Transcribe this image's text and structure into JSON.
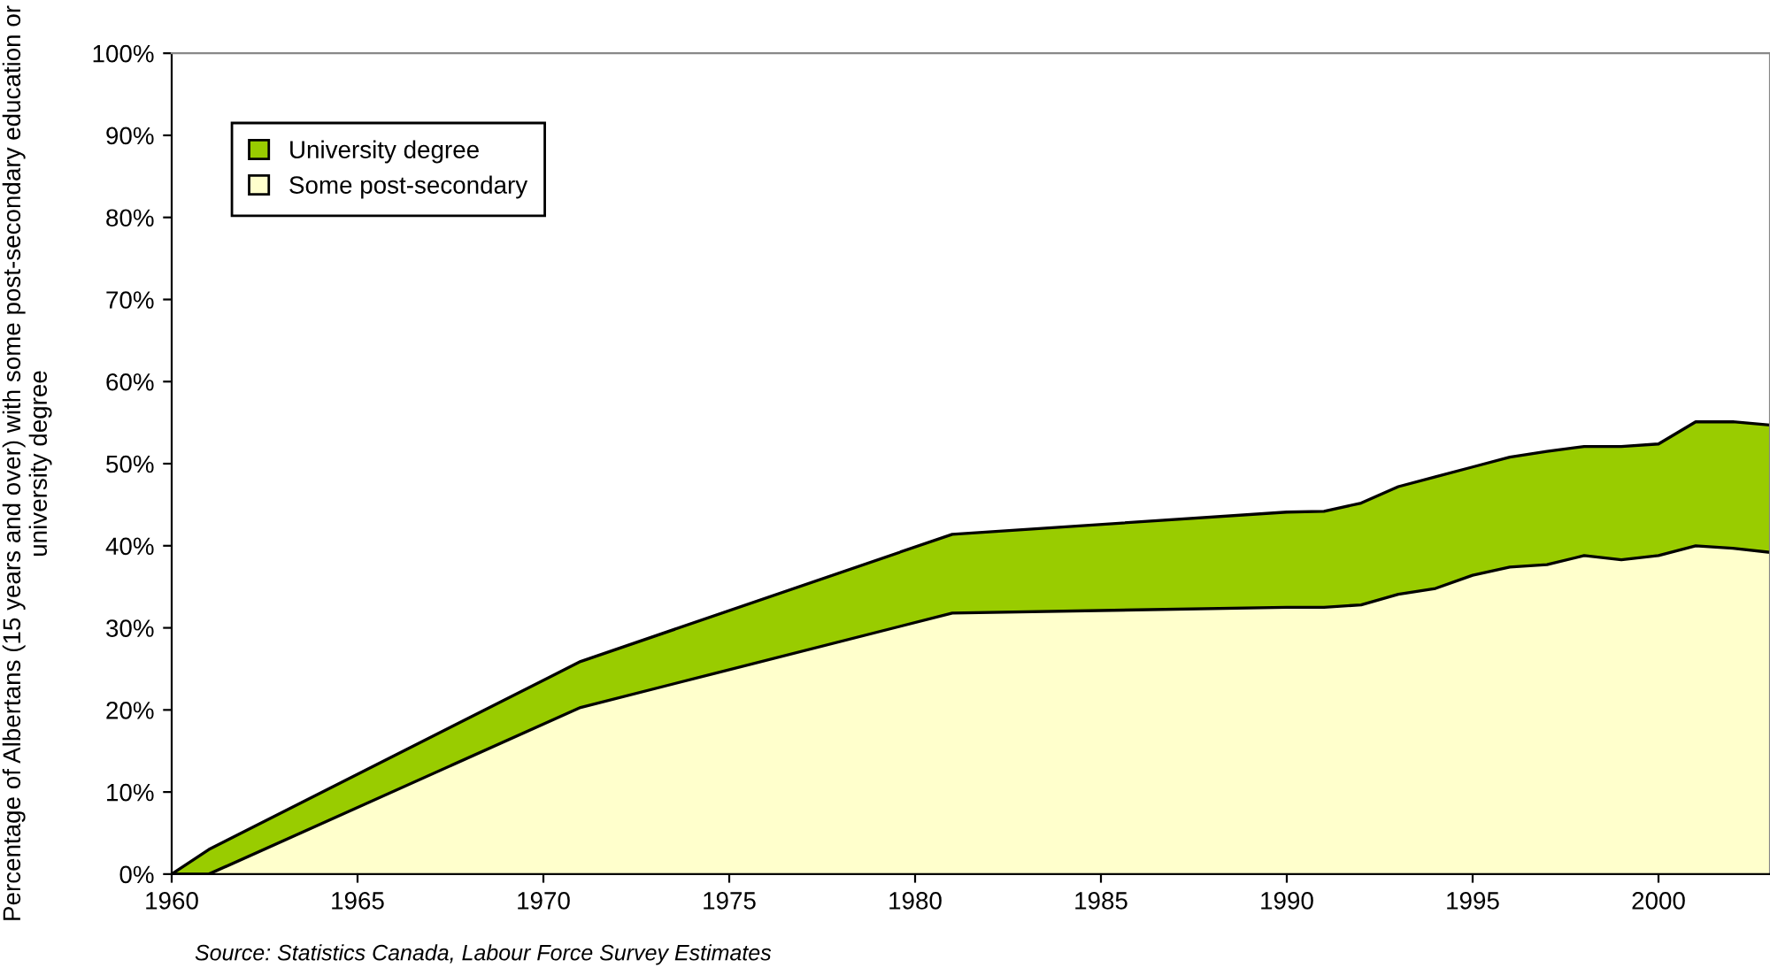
{
  "chart_data": {
    "type": "area",
    "stacked": true,
    "ylabel": "Percentage of Albertans (15 years and over) with some post-secondary education or university degree",
    "x": [
      1960,
      1961,
      1971,
      1981,
      1990,
      1991,
      1992,
      1993,
      1994,
      1995,
      1996,
      1997,
      1998,
      1999,
      2000,
      2001,
      2002,
      2003
    ],
    "series": [
      {
        "name": "Some post-secondary",
        "color": "#ffffcc",
        "values": [
          0,
          0,
          20.3,
          31.8,
          32.5,
          32.5,
          32.8,
          34.1,
          34.8,
          36.4,
          37.4,
          37.7,
          38.8,
          38.3,
          38.8,
          40.0,
          39.7,
          39.2
        ]
      },
      {
        "name": "University degree",
        "color": "#99cc00",
        "values": [
          0,
          3,
          5.6,
          9.6,
          11.6,
          11.7,
          12.4,
          13.1,
          13.6,
          13.2,
          13.4,
          13.8,
          13.3,
          13.8,
          13.6,
          15.1,
          15.4,
          15.5
        ]
      }
    ],
    "xlim": [
      1960,
      2003
    ],
    "xticks": [
      1960,
      1965,
      1970,
      1975,
      1980,
      1985,
      1990,
      1995,
      2000
    ],
    "ylim": [
      0,
      100
    ],
    "yticks": [
      {
        "value": 0,
        "label": "0%"
      },
      {
        "value": 10,
        "label": "10%"
      },
      {
        "value": 20,
        "label": "20%"
      },
      {
        "value": 30,
        "label": "30%"
      },
      {
        "value": 40,
        "label": "40%"
      },
      {
        "value": 50,
        "label": "50%"
      },
      {
        "value": 60,
        "label": "60%"
      },
      {
        "value": 70,
        "label": "70%"
      },
      {
        "value": 80,
        "label": "80%"
      },
      {
        "value": 90,
        "label": "90%"
      },
      {
        "value": 100,
        "label": "100%"
      }
    ],
    "legend": "top left",
    "grid": false,
    "annotations": [
      "Source: Statistics Canada, Labour Force Survey Estimates"
    ]
  }
}
